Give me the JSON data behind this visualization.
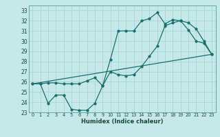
{
  "xlabel": "Humidex (Indice chaleur)",
  "bg_color": "#c5e8e8",
  "grid_color": "#a8d4d4",
  "line_color": "#1a6e6e",
  "xlim": [
    -0.5,
    23.5
  ],
  "ylim": [
    23.0,
    33.5
  ],
  "xticks": [
    0,
    1,
    2,
    3,
    4,
    5,
    6,
    7,
    8,
    9,
    10,
    11,
    12,
    13,
    14,
    15,
    16,
    17,
    18,
    19,
    20,
    21,
    22,
    23
  ],
  "yticks": [
    23,
    24,
    25,
    26,
    27,
    28,
    29,
    30,
    31,
    32,
    33
  ],
  "line1_x": [
    0,
    1,
    2,
    3,
    4,
    5,
    6,
    7,
    8,
    9,
    10,
    11,
    12,
    13,
    14,
    15,
    16,
    17,
    18,
    19,
    20,
    21,
    22,
    23
  ],
  "line1_y": [
    25.8,
    25.8,
    23.9,
    24.7,
    24.7,
    23.3,
    23.2,
    23.2,
    23.9,
    25.6,
    28.2,
    31.0,
    31.0,
    31.0,
    32.0,
    32.2,
    32.8,
    31.7,
    32.1,
    32.0,
    31.1,
    30.0,
    29.8,
    28.7
  ],
  "line2_x": [
    0,
    23
  ],
  "line2_y": [
    25.8,
    28.7
  ],
  "line3_x": [
    0,
    1,
    2,
    3,
    4,
    5,
    6,
    7,
    8,
    9,
    10,
    11,
    12,
    13,
    14,
    15,
    16,
    17,
    18,
    19,
    20,
    21,
    22,
    23
  ],
  "line3_y": [
    25.8,
    25.8,
    25.9,
    25.9,
    25.8,
    25.8,
    25.8,
    26.1,
    26.4,
    25.6,
    27.0,
    26.7,
    26.6,
    26.7,
    27.5,
    28.5,
    29.5,
    31.5,
    31.8,
    32.0,
    31.8,
    31.2,
    30.0,
    28.7
  ]
}
